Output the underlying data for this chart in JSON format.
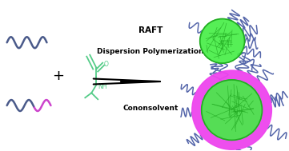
{
  "bg_color": "white",
  "text_raft": "RAFT",
  "text_disp": "Dispersion Polymerization",
  "text_cono": "Cononsolvent",
  "wave_color_blue": "#4a5a8a",
  "wave_color_magenta": "#cc44cc",
  "monomer_color": "#55cc88",
  "nanogel_green": "#44ee44",
  "nanogel_shell": "#ee44ee",
  "nanogel_inner_lines": "#22aa22",
  "chain_color": "#5566aa",
  "fig_width": 3.61,
  "fig_height": 1.89,
  "dpi": 100
}
